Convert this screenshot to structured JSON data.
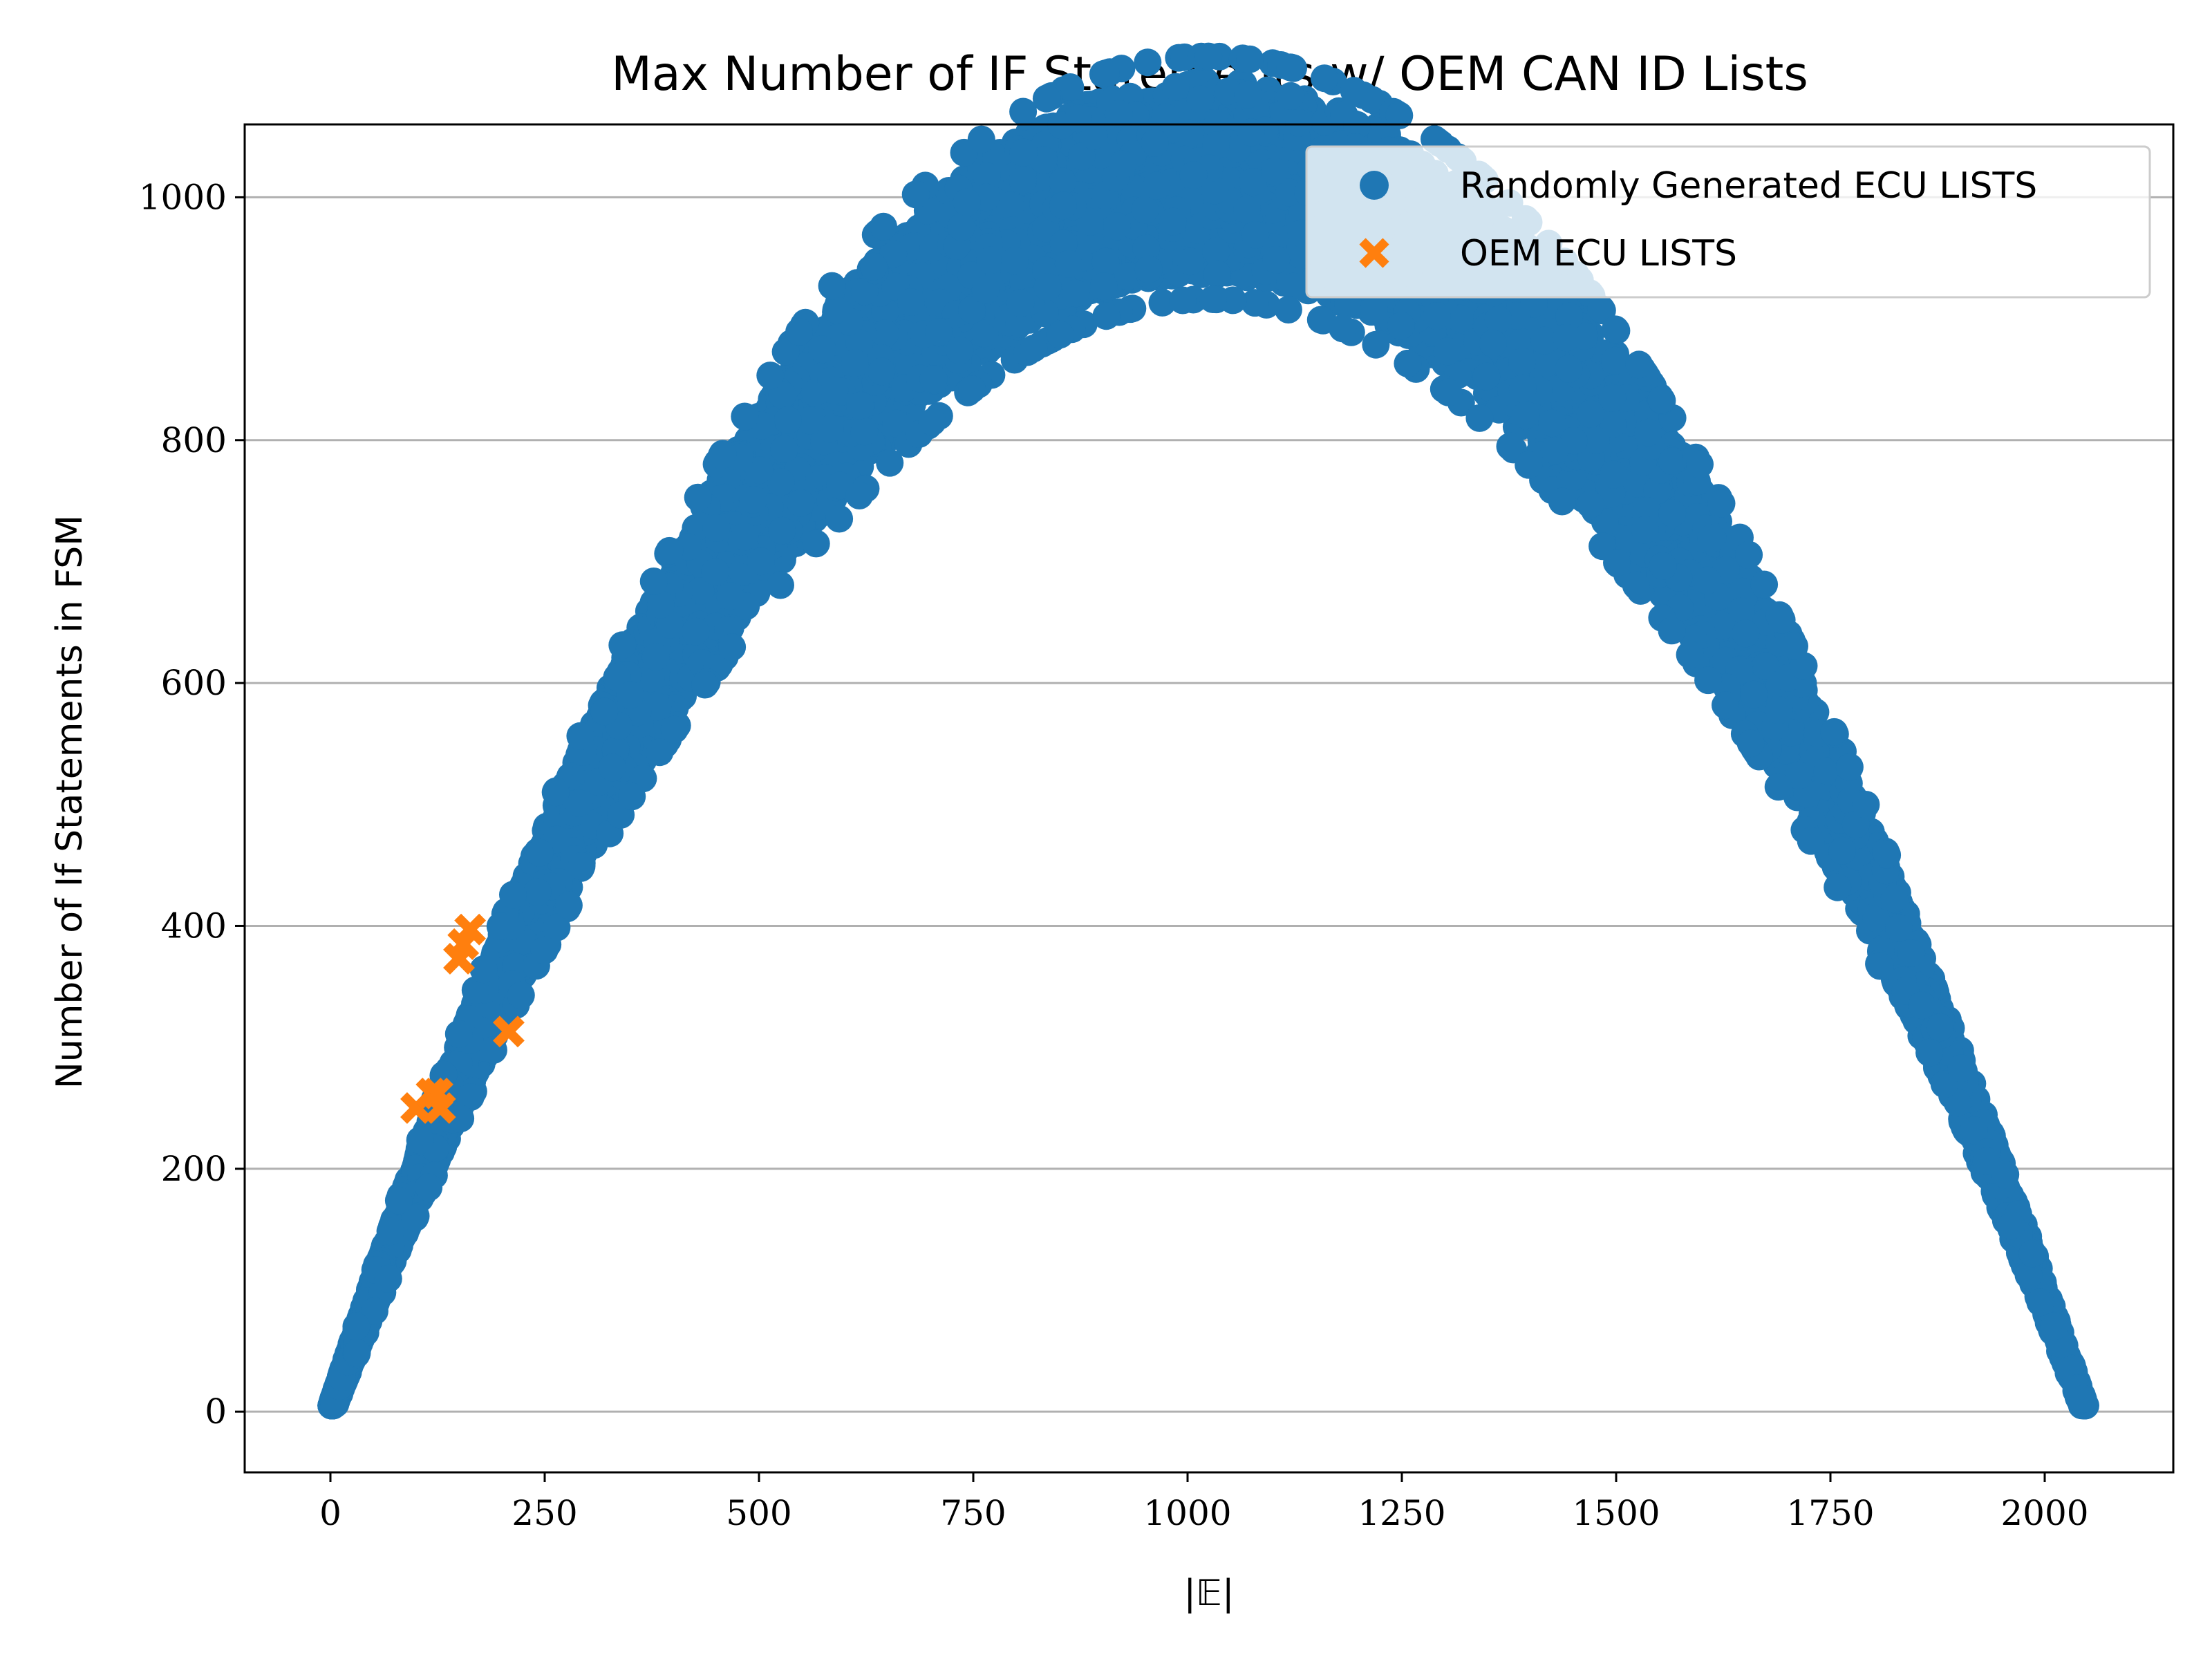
{
  "chart_data": {
    "type": "scatter",
    "title": "Max Number of IF Statements w/ OEM CAN ID Lists",
    "xlabel": "|𝔼|",
    "ylabel": "Number of If Statements in FSM",
    "xlim": [
      -100,
      2150
    ],
    "ylim": [
      -50,
      1060
    ],
    "x_ticks": [
      "0",
      "250",
      "500",
      "750",
      "1000",
      "1250",
      "1500",
      "1750",
      "2000"
    ],
    "y_ticks": [
      "0",
      "200",
      "400",
      "600",
      "800",
      "1000"
    ],
    "grid": "horizontal",
    "legend_position": "top-right",
    "series": [
      {
        "name": "Randomly Generated ECU LISTS",
        "marker": "circle",
        "color": "#1f77b4",
        "band": {
          "centerline_formula": "y = x*(2048-x)/1024 for x in [0, 2048]",
          "spread_peak": 80
        }
      },
      {
        "name": "OEM ECU LISTS",
        "marker": "x",
        "color": "#ff7f0e",
        "points": [
          {
            "x": 100,
            "y": 250
          },
          {
            "x": 118,
            "y": 262
          },
          {
            "x": 128,
            "y": 250
          },
          {
            "x": 125,
            "y": 262
          },
          {
            "x": 150,
            "y": 373
          },
          {
            "x": 155,
            "y": 385
          },
          {
            "x": 163,
            "y": 397
          },
          {
            "x": 208,
            "y": 313
          }
        ]
      }
    ]
  }
}
